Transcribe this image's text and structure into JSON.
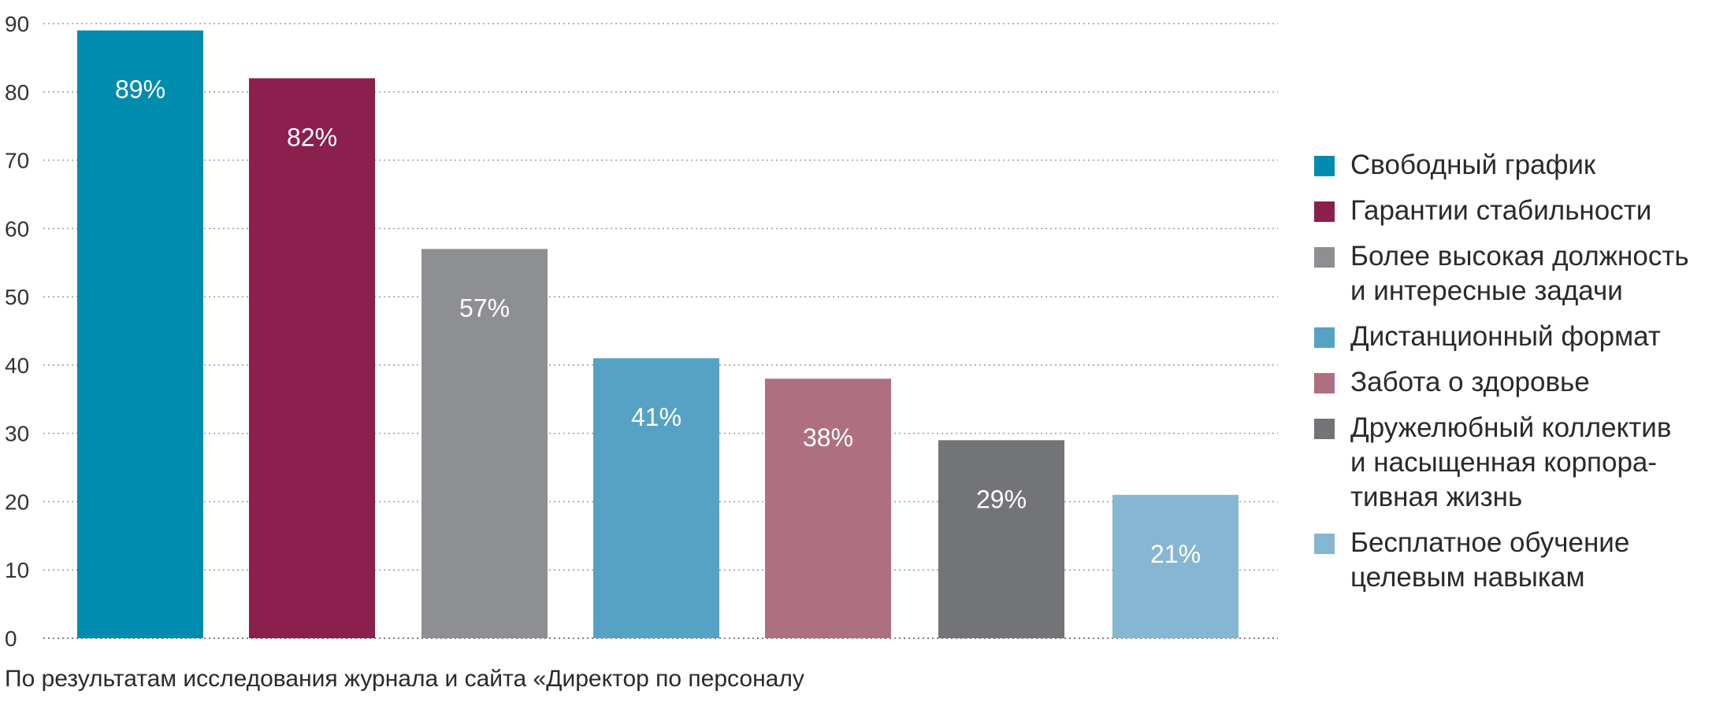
{
  "chart_data": {
    "type": "bar",
    "categories": [
      "Свободный график",
      "Гарантии стабильности",
      "Более высокая должность\nи интересные задачи",
      "Дистанционный формат",
      "Забота о здоровье",
      "Дружелюбный коллектив\nи насыщенная корпора-\nтивная жизнь",
      "Бесплатное обучение\nцелевым навыкам"
    ],
    "values": [
      89,
      82,
      57,
      41,
      38,
      29,
      21
    ],
    "data_labels": [
      "89%",
      "82%",
      "57%",
      "41%",
      "38%",
      "29%",
      "21%"
    ],
    "colors": [
      "#008caf",
      "#8b1f4d",
      "#8e8f93",
      "#55a2c4",
      "#ae6f80",
      "#737477",
      "#86b6d1"
    ],
    "ylim": [
      0,
      90
    ],
    "yticks": [
      0,
      10,
      20,
      30,
      40,
      50,
      60,
      70,
      80,
      90
    ],
    "grid": true,
    "legend_position": "right"
  },
  "caption": "По результатам исследования журнала и сайта «Директор по персоналу"
}
